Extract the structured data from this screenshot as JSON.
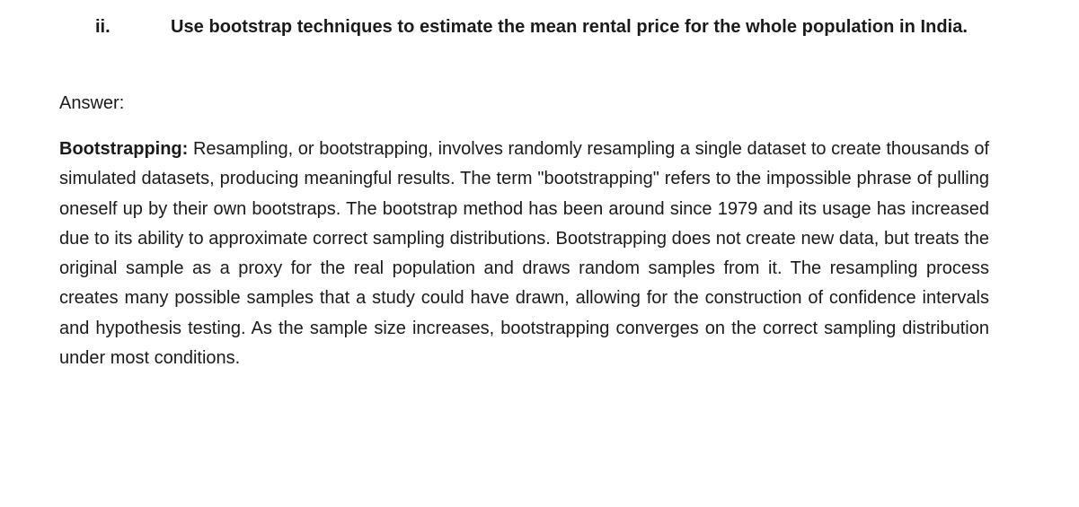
{
  "question": {
    "number": "ii.",
    "text": "Use bootstrap techniques to estimate the mean rental price for the whole population in India."
  },
  "answer": {
    "label": "Answer:",
    "term": "Bootstrapping:",
    "body": " Resampling, or bootstrapping, involves randomly resampling a single dataset to create thousands of simulated datasets, producing meaningful results. The term \"bootstrapping\" refers to the impossible phrase of pulling oneself up by their own bootstraps. The bootstrap method has been around since 1979 and its usage has increased due to its ability to approximate correct sampling distributions. Bootstrapping does not create new data, but treats the original sample as a proxy for the real population and draws random samples from it. The resampling process creates many possible samples that a study could have drawn, allowing for the construction of confidence intervals and hypothesis testing. As the sample size increases, bootstrapping converges on the correct sampling distribution under most conditions."
  }
}
